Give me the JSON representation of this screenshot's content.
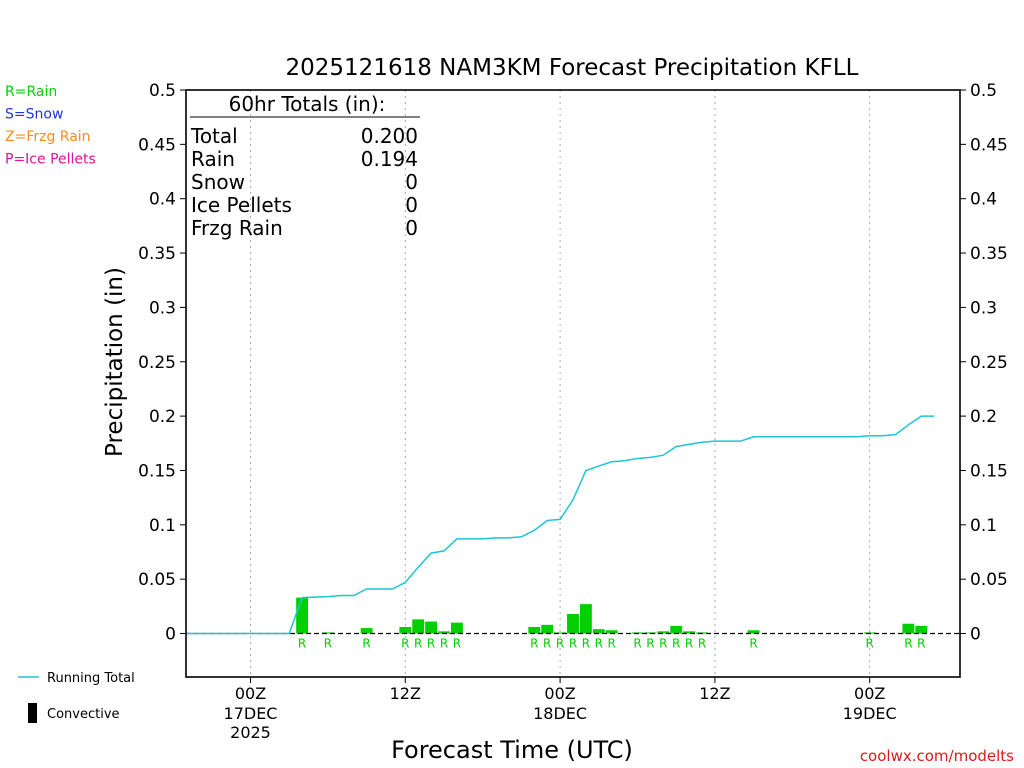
{
  "chart_data": {
    "type": "bar",
    "title": "2025121618 NAM3KM Forecast Precipitation KFLL",
    "xlabel": "Forecast Time (UTC)",
    "ylabel": "Precipitation (in)",
    "ylim": [
      -0.04,
      0.5
    ],
    "y_ticks": [
      "0",
      "0.05",
      "0.1",
      "0.15",
      "0.2",
      "0.25",
      "0.3",
      "0.35",
      "0.4",
      "0.45",
      "0.5"
    ],
    "x_range_hours": [
      -5,
      55
    ],
    "x_ticks": [
      {
        "hour": 0,
        "line1": "00Z",
        "line2": "17DEC",
        "line3": "2025"
      },
      {
        "hour": 12,
        "line1": "12Z",
        "line2": "",
        "line3": ""
      },
      {
        "hour": 24,
        "line1": "00Z",
        "line2": "18DEC",
        "line3": ""
      },
      {
        "hour": 36,
        "line1": "12Z",
        "line2": "",
        "line3": ""
      },
      {
        "hour": 48,
        "line1": "00Z",
        "line2": "19DEC",
        "line3": ""
      }
    ],
    "bars": [
      {
        "hour": 4,
        "value": 0.033,
        "type": "R"
      },
      {
        "hour": 6,
        "value": 0.001,
        "type": "R"
      },
      {
        "hour": 9,
        "value": 0.005,
        "type": "R"
      },
      {
        "hour": 12,
        "value": 0.006,
        "type": "R"
      },
      {
        "hour": 13,
        "value": 0.013,
        "type": "R"
      },
      {
        "hour": 14,
        "value": 0.011,
        "type": "R"
      },
      {
        "hour": 15,
        "value": 0.002,
        "type": "R"
      },
      {
        "hour": 16,
        "value": 0.01,
        "type": "R"
      },
      {
        "hour": 22,
        "value": 0.006,
        "type": "R"
      },
      {
        "hour": 23,
        "value": 0.008,
        "type": "R"
      },
      {
        "hour": 24,
        "value": 0.001,
        "type": "R"
      },
      {
        "hour": 25,
        "value": 0.018,
        "type": "R"
      },
      {
        "hour": 26,
        "value": 0.027,
        "type": "R"
      },
      {
        "hour": 27,
        "value": 0.004,
        "type": "R"
      },
      {
        "hour": 28,
        "value": 0.003,
        "type": "R"
      },
      {
        "hour": 30,
        "value": 0.001,
        "type": "R"
      },
      {
        "hour": 31,
        "value": 0.001,
        "type": "R"
      },
      {
        "hour": 32,
        "value": 0.002,
        "type": "R"
      },
      {
        "hour": 33,
        "value": 0.007,
        "type": "R"
      },
      {
        "hour": 34,
        "value": 0.002,
        "type": "R"
      },
      {
        "hour": 35,
        "value": 0.001,
        "type": "R"
      },
      {
        "hour": 39,
        "value": 0.003,
        "type": "R"
      },
      {
        "hour": 48,
        "value": 0.001,
        "type": "R"
      },
      {
        "hour": 51,
        "value": 0.009,
        "type": "R"
      },
      {
        "hour": 52,
        "value": 0.007,
        "type": "R"
      }
    ],
    "running_total": {
      "hours": [
        -5,
        3,
        4,
        6,
        7,
        8,
        9,
        10,
        11,
        12,
        13,
        14,
        15,
        16,
        17,
        18,
        19,
        20,
        21,
        22,
        23,
        24,
        25,
        26,
        27,
        28,
        29,
        30,
        31,
        32,
        33,
        34,
        35,
        36,
        37,
        38,
        39,
        40,
        41,
        42,
        43,
        44,
        45,
        46,
        47,
        48,
        49,
        50,
        51,
        52,
        53
      ],
      "values": [
        0,
        0,
        0.033,
        0.034,
        0.035,
        0.035,
        0.041,
        0.041,
        0.041,
        0.047,
        0.061,
        0.074,
        0.076,
        0.087,
        0.087,
        0.087,
        0.088,
        0.088,
        0.089,
        0.095,
        0.104,
        0.105,
        0.123,
        0.15,
        0.154,
        0.158,
        0.159,
        0.161,
        0.162,
        0.164,
        0.172,
        0.174,
        0.176,
        0.177,
        0.177,
        0.177,
        0.181,
        0.181,
        0.181,
        0.181,
        0.181,
        0.181,
        0.181,
        0.181,
        0.181,
        0.182,
        0.182,
        0.183,
        0.192,
        0.2,
        0.2
      ]
    },
    "totals_box": {
      "header": "60hr Totals (in):",
      "rows": [
        {
          "label": "Total",
          "value": "0.200"
        },
        {
          "label": "Rain",
          "value": "0.194"
        },
        {
          "label": "Snow",
          "value": "0"
        },
        {
          "label": "Ice Pellets",
          "value": "0"
        },
        {
          "label": "Frzg Rain",
          "value": "0"
        }
      ]
    },
    "type_legend": [
      {
        "text": "R=Rain",
        "color": "#00d000"
      },
      {
        "text": "S=Snow",
        "color": "#2233dd"
      },
      {
        "text": "Z=Frzg Rain",
        "color": "#ff8c1a"
      },
      {
        "text": "P=Ice Pellets",
        "color": "#e0119a"
      }
    ],
    "line_legend": "Running Total",
    "bar_legend": "Convective",
    "colors": {
      "bar": "#00d000",
      "line": "#1cc6d6",
      "type_label": "#00d000",
      "grid": "#aaaaaa",
      "credit": "#d81b1b"
    },
    "credit": "coolwx.com/modelts"
  }
}
